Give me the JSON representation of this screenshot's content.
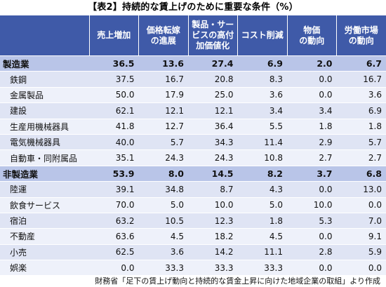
{
  "title": "【表2】持続的な賃上げのために重要な条件（%）",
  "headers": [
    "売上増加",
    "価格転嫁の進展",
    "製品・サービスの高付加価値化",
    "コスト削減",
    "物価の動向",
    "労働市場の動向"
  ],
  "headers_lines": [
    [
      "売上増加"
    ],
    [
      "価格転嫁",
      "の進展"
    ],
    [
      "製品・サー",
      "ビスの高付",
      "加価値化"
    ],
    [
      "コスト削減"
    ],
    [
      "物価",
      "の動向"
    ],
    [
      "労働市場",
      "の動向"
    ]
  ],
  "rows": [
    {
      "type": "sector",
      "name": "製造業",
      "values": [
        "36.5",
        "13.6",
        "27.4",
        "6.9",
        "2.0",
        "6.7"
      ]
    },
    {
      "type": "sub",
      "name": "鉄鋼",
      "values": [
        "37.5",
        "16.7",
        "20.8",
        "8.3",
        "0.0",
        "16.7"
      ]
    },
    {
      "type": "sub",
      "name": "金属製品",
      "values": [
        "50.0",
        "17.9",
        "25.0",
        "3.6",
        "0.0",
        "3.6"
      ]
    },
    {
      "type": "sub",
      "name": "建設",
      "values": [
        "62.1",
        "12.1",
        "12.1",
        "3.4",
        "3.4",
        "6.9"
      ]
    },
    {
      "type": "sub",
      "name": "生産用機械器具",
      "values": [
        "41.8",
        "12.7",
        "36.4",
        "5.5",
        "1.8",
        "1.8"
      ]
    },
    {
      "type": "sub",
      "name": "電気機械器具",
      "values": [
        "40.0",
        "5.7",
        "34.3",
        "11.4",
        "2.9",
        "5.7"
      ]
    },
    {
      "type": "sub",
      "name": "自動車・同附属品",
      "values": [
        "35.1",
        "24.3",
        "24.3",
        "10.8",
        "2.7",
        "2.7"
      ]
    },
    {
      "type": "sector",
      "name": "非製造業",
      "values": [
        "53.9",
        "8.0",
        "14.5",
        "8.2",
        "3.7",
        "6.8"
      ]
    },
    {
      "type": "sub",
      "name": "陸運",
      "values": [
        "39.1",
        "34.8",
        "8.7",
        "4.3",
        "0.0",
        "13.0"
      ]
    },
    {
      "type": "sub",
      "name": "飲食サービス",
      "values": [
        "70.0",
        "5.0",
        "10.0",
        "5.0",
        "10.0",
        "0.0"
      ]
    },
    {
      "type": "sub",
      "name": "宿泊",
      "values": [
        "63.2",
        "10.5",
        "12.3",
        "1.8",
        "5.3",
        "7.0"
      ]
    },
    {
      "type": "sub",
      "name": "不動産",
      "values": [
        "63.6",
        "4.5",
        "18.2",
        "4.5",
        "0.0",
        "9.1"
      ]
    },
    {
      "type": "sub",
      "name": "小売",
      "values": [
        "62.5",
        "3.6",
        "14.2",
        "11.1",
        "2.8",
        "5.9"
      ]
    },
    {
      "type": "sub",
      "name": "娯楽",
      "values": [
        "0.0",
        "33.3",
        "33.3",
        "33.3",
        "0.0",
        "0.0"
      ]
    }
  ],
  "source": "財務省「足下の賃上げ動向と持続的な賃金上昇に向けた地域企業の取組」より作成",
  "colors": {
    "header_bg": "#3f5aa8",
    "sector_bg": "#b9c5e8",
    "row_odd_bg": "#dfe4f4",
    "row_even_bg": "#eef1fa"
  }
}
